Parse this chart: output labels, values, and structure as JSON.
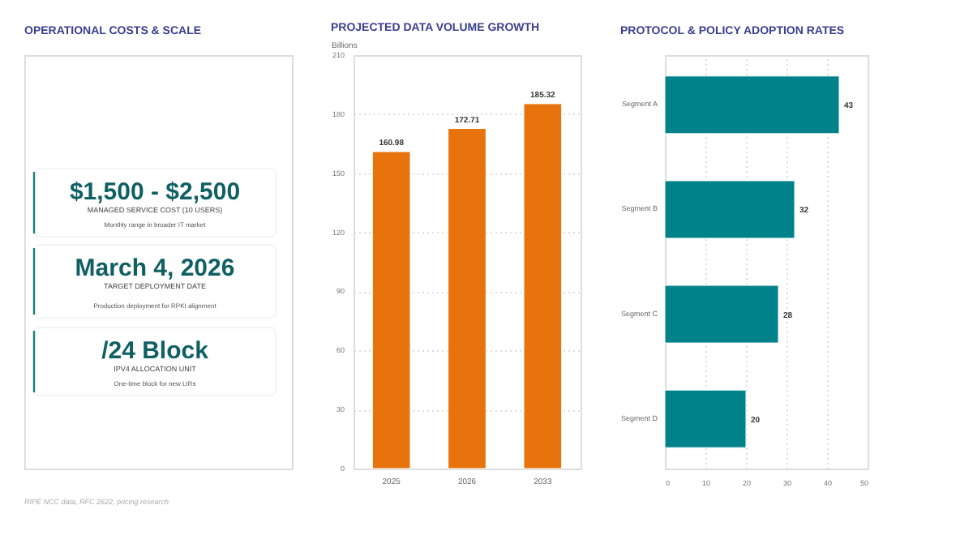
{
  "chart_data": [
    {
      "type": "other",
      "title": "OPERATIONAL COSTS & SCALE",
      "annotations": [
        "$1,500 - $2,500",
        "MANAGED SERVICE COST (10 USERS)",
        "Monthly range in broader IT market",
        "March 4, 2026",
        "TARGET DEPLOYMENT DATE",
        "Production deployment for RPKI alignment",
        "/24 Block",
        "IPV4 ALLOCATION UNIT",
        "One-time block for new LIRs",
        "RIPE NCC data, RFC 2622, pricing research"
      ]
    },
    {
      "type": "bar",
      "title": "PROJECTED DATA VOLUME GROWTH",
      "ylabel": "Billions",
      "categories": [
        "2025",
        "2026",
        "2033"
      ],
      "values": [
        160.98,
        172.71,
        185.32
      ],
      "color": "#e8730c",
      "ylim": [
        0,
        210
      ],
      "yticks": [
        0,
        30,
        60,
        90,
        120,
        150,
        180,
        210
      ],
      "grid": "y",
      "data_labels": true
    },
    {
      "type": "bar",
      "orientation": "horizontal",
      "title": "PROTOCOL & POLICY ADOPTION RATES",
      "categories": [
        "Segment A",
        "Segment B",
        "Segment C",
        "Segment D"
      ],
      "values": [
        43,
        32,
        28,
        20
      ],
      "color": "#00828a",
      "xlim": [
        0,
        50
      ],
      "xticks": [
        0,
        10,
        20,
        30,
        40,
        50
      ],
      "grid": "x",
      "data_labels": true
    }
  ]
}
